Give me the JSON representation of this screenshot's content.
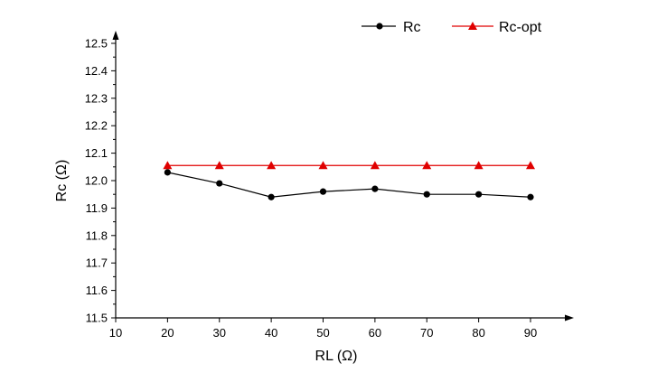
{
  "chart_data": {
    "type": "line",
    "title": "",
    "xlabel": "RL (Ω)",
    "ylabel": "Rc (Ω)",
    "xlim": [
      10,
      100
    ],
    "ylim": [
      11.5,
      12.55
    ],
    "xticks": [
      10,
      20,
      30,
      40,
      50,
      60,
      70,
      80,
      90
    ],
    "yticks": [
      11.5,
      11.6,
      11.7,
      11.8,
      11.9,
      12.0,
      12.1,
      12.2,
      12.3,
      12.4,
      12.5
    ],
    "ytick_labels": [
      "11.5",
      "11.6",
      "11.7",
      "11.8",
      "11.9",
      "12.0",
      "12.1",
      "12.2",
      "12.3",
      "12.4",
      "12.5"
    ],
    "grid": false,
    "legend_position": "top-right",
    "x": [
      20,
      30,
      40,
      50,
      60,
      70,
      80,
      90
    ],
    "series": [
      {
        "name": "Rc",
        "values": [
          12.03,
          11.99,
          11.94,
          11.96,
          11.97,
          11.95,
          11.95,
          11.94
        ],
        "color": "#000000",
        "marker": "circle"
      },
      {
        "name": "Rc-opt",
        "values": [
          12.055,
          12.055,
          12.055,
          12.055,
          12.055,
          12.055,
          12.055,
          12.055
        ],
        "color": "#e00000",
        "marker": "triangle"
      }
    ]
  }
}
